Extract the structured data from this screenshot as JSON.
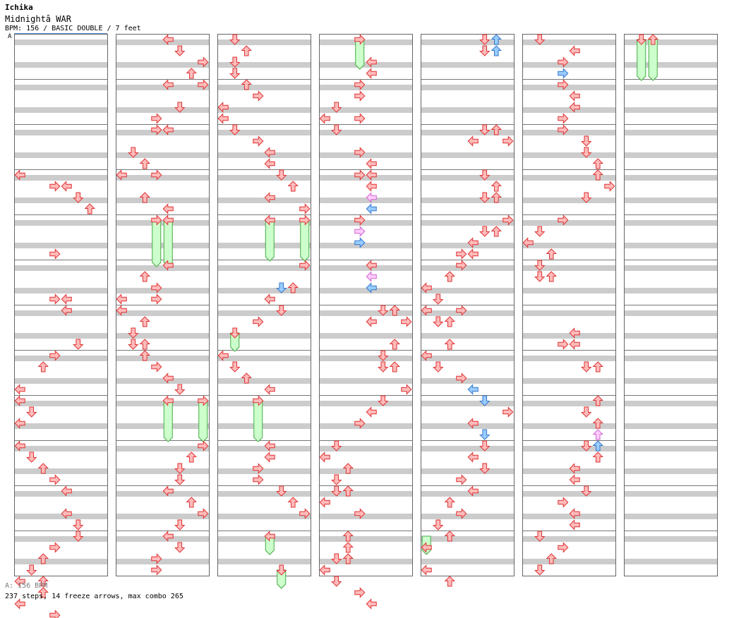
{
  "header": {
    "artist": "Ichika",
    "song": "Midnightâ  WAR",
    "meta": "BPM: 156 / BASIC DOUBLE / 7 feet",
    "marker": "A"
  },
  "footer": {
    "bpm_note": "A: 156 BPM",
    "summary": "237 steps, 14 freeze arrows, max combo 265"
  },
  "colors": {
    "stripe": "#cccccc",
    "border": "#666666",
    "arrow_red": "#ffbbbb",
    "arrow_red_stroke": "#dd3333",
    "arrow_blue": "#99ccff",
    "arrow_blue_stroke": "#3377cc",
    "arrow_pink": "#ffccff",
    "arrow_pink_stroke": "#cc66cc",
    "freeze_fill": "#ccffcc",
    "freeze_stroke": "#44aa44"
  },
  "columns": [
    {
      "notes": [
        [
          0,
          12,
          "r"
        ],
        [
          3,
          13,
          "r"
        ],
        [
          4,
          13,
          "r"
        ],
        [
          5,
          14,
          "r"
        ],
        [
          6,
          15,
          "r"
        ],
        [
          3,
          19,
          "r"
        ],
        [
          3,
          23,
          "r"
        ],
        [
          4,
          23,
          "r"
        ],
        [
          4,
          24,
          "r"
        ],
        [
          5,
          27,
          "r"
        ],
        [
          3,
          28,
          "r"
        ],
        [
          2,
          29,
          "r"
        ],
        [
          0,
          31,
          "r"
        ],
        [
          0,
          32,
          "r"
        ],
        [
          1,
          33,
          "r"
        ],
        [
          0,
          34,
          "r"
        ],
        [
          0,
          36,
          "r"
        ],
        [
          1,
          37,
          "r"
        ],
        [
          2,
          38,
          "r"
        ],
        [
          3,
          39,
          "r"
        ],
        [
          4,
          40,
          "r"
        ],
        [
          4,
          42,
          "r"
        ],
        [
          5,
          43,
          "r"
        ],
        [
          5,
          44,
          "r"
        ],
        [
          3,
          45,
          "r"
        ],
        [
          2,
          46,
          "r"
        ],
        [
          1,
          47,
          "r"
        ],
        [
          0,
          48,
          "r"
        ],
        [
          2,
          48,
          "r"
        ],
        [
          2,
          49,
          "r"
        ],
        [
          0,
          50,
          "r"
        ],
        [
          3,
          51,
          "r"
        ],
        [
          1,
          52,
          "r"
        ]
      ],
      "freezes": []
    },
    {
      "notes": [
        [
          4,
          0,
          "r"
        ],
        [
          5,
          1,
          "r"
        ],
        [
          7,
          2,
          "r"
        ],
        [
          6,
          3,
          "r"
        ],
        [
          4,
          4,
          "r"
        ],
        [
          7,
          4,
          "r"
        ],
        [
          5,
          6,
          "r"
        ],
        [
          3,
          7,
          "r"
        ],
        [
          3,
          8,
          "r"
        ],
        [
          4,
          8,
          "r"
        ],
        [
          1,
          10,
          "r"
        ],
        [
          2,
          11,
          "r"
        ],
        [
          0,
          12,
          "r"
        ],
        [
          3,
          12,
          "r"
        ],
        [
          2,
          14,
          "r"
        ],
        [
          4,
          15,
          "r"
        ],
        [
          3,
          16,
          "r"
        ],
        [
          4,
          16,
          "r"
        ],
        [
          4,
          20,
          "r"
        ],
        [
          2,
          21,
          "r"
        ],
        [
          3,
          22,
          "r"
        ],
        [
          0,
          23,
          "r"
        ],
        [
          3,
          23,
          "r"
        ],
        [
          0,
          24,
          "r"
        ],
        [
          2,
          25,
          "r"
        ],
        [
          1,
          26,
          "r"
        ],
        [
          1,
          27,
          "r"
        ],
        [
          2,
          27,
          "r"
        ],
        [
          2,
          28,
          "r"
        ],
        [
          3,
          29,
          "r"
        ],
        [
          4,
          30,
          "r"
        ],
        [
          5,
          31,
          "r"
        ],
        [
          4,
          32,
          "r"
        ],
        [
          7,
          32,
          "r"
        ],
        [
          7,
          36,
          "r"
        ],
        [
          6,
          37,
          "r"
        ],
        [
          5,
          38,
          "r"
        ],
        [
          5,
          39,
          "r"
        ],
        [
          4,
          40,
          "r"
        ],
        [
          6,
          41,
          "r"
        ],
        [
          7,
          42,
          "r"
        ],
        [
          5,
          43,
          "r"
        ],
        [
          4,
          44,
          "r"
        ],
        [
          5,
          45,
          "r"
        ],
        [
          3,
          46,
          "r"
        ],
        [
          3,
          47,
          "r"
        ]
      ],
      "freezes": [
        [
          3,
          16,
          20
        ],
        [
          4,
          16,
          20
        ],
        [
          4,
          32,
          35.5
        ],
        [
          7,
          32,
          35.5
        ]
      ]
    },
    {
      "notes": [
        [
          1,
          0,
          "r"
        ],
        [
          2,
          1,
          "r"
        ],
        [
          1,
          2,
          "r"
        ],
        [
          1,
          3,
          "r"
        ],
        [
          2,
          4,
          "r"
        ],
        [
          3,
          5,
          "r"
        ],
        [
          0,
          6,
          "r"
        ],
        [
          0,
          7,
          "r"
        ],
        [
          1,
          8,
          "r"
        ],
        [
          3,
          9,
          "r"
        ],
        [
          4,
          10,
          "r"
        ],
        [
          4,
          11,
          "r"
        ],
        [
          5,
          12,
          "r"
        ],
        [
          6,
          13,
          "r"
        ],
        [
          4,
          14,
          "r"
        ],
        [
          7,
          15,
          "r"
        ],
        [
          4,
          16,
          "r"
        ],
        [
          7,
          16,
          "r"
        ],
        [
          7,
          20,
          "r"
        ],
        [
          5,
          22,
          "b"
        ],
        [
          6,
          22,
          "r"
        ],
        [
          4,
          23,
          "r"
        ],
        [
          5,
          24,
          "r"
        ],
        [
          3,
          25,
          "r"
        ],
        [
          1,
          26,
          "r"
        ],
        [
          0,
          28,
          "r"
        ],
        [
          1,
          29,
          "r"
        ],
        [
          2,
          30,
          "r"
        ],
        [
          4,
          31,
          "r"
        ],
        [
          3,
          32,
          "r"
        ],
        [
          4,
          36,
          "r"
        ],
        [
          4,
          37,
          "r"
        ],
        [
          3,
          38,
          "r"
        ],
        [
          3,
          39,
          "r"
        ],
        [
          5,
          40,
          "r"
        ],
        [
          6,
          41,
          "r"
        ],
        [
          7,
          42,
          "r"
        ],
        [
          4,
          44,
          "r"
        ],
        [
          5,
          47,
          "r"
        ]
      ],
      "freezes": [
        [
          4,
          16,
          19.5
        ],
        [
          7,
          16,
          19.5
        ],
        [
          1,
          26,
          27.5
        ],
        [
          3,
          32,
          35.5
        ],
        [
          4,
          44,
          45.5
        ],
        [
          5,
          47,
          48.5
        ]
      ]
    },
    {
      "notes": [
        [
          3,
          0,
          "r"
        ],
        [
          4,
          2,
          "r"
        ],
        [
          4,
          3,
          "r"
        ],
        [
          3,
          4,
          "r"
        ],
        [
          3,
          5,
          "r"
        ],
        [
          1,
          6,
          "r"
        ],
        [
          0,
          7,
          "r"
        ],
        [
          3,
          7,
          "r"
        ],
        [
          1,
          8,
          "r"
        ],
        [
          3,
          10,
          "r"
        ],
        [
          4,
          11,
          "r"
        ],
        [
          3,
          12,
          "r"
        ],
        [
          4,
          12,
          "r"
        ],
        [
          4,
          13,
          "r"
        ],
        [
          4,
          14,
          "p"
        ],
        [
          4,
          15,
          "b"
        ],
        [
          3,
          16,
          "r"
        ],
        [
          3,
          17,
          "p"
        ],
        [
          3,
          18,
          "b"
        ],
        [
          4,
          20,
          "r"
        ],
        [
          4,
          21,
          "p"
        ],
        [
          4,
          22,
          "b"
        ],
        [
          5,
          24,
          "r"
        ],
        [
          6,
          24,
          "r"
        ],
        [
          4,
          25,
          "r"
        ],
        [
          7,
          25,
          "r"
        ],
        [
          6,
          27,
          "r"
        ],
        [
          5,
          28,
          "r"
        ],
        [
          5,
          29,
          "r"
        ],
        [
          6,
          29,
          "r"
        ],
        [
          7,
          31,
          "r"
        ],
        [
          5,
          32,
          "r"
        ],
        [
          4,
          33,
          "r"
        ],
        [
          3,
          34,
          "r"
        ],
        [
          1,
          36,
          "r"
        ],
        [
          0,
          37,
          "r"
        ],
        [
          2,
          38,
          "r"
        ],
        [
          1,
          39,
          "r"
        ],
        [
          1,
          40,
          "r"
        ],
        [
          2,
          40,
          "r"
        ],
        [
          0,
          41,
          "r"
        ],
        [
          3,
          42,
          "r"
        ],
        [
          2,
          44,
          "r"
        ],
        [
          2,
          45,
          "r"
        ],
        [
          1,
          46,
          "r"
        ],
        [
          2,
          46,
          "r"
        ],
        [
          0,
          47,
          "r"
        ],
        [
          1,
          48,
          "r"
        ],
        [
          3,
          49,
          "r"
        ],
        [
          4,
          50,
          "r"
        ]
      ],
      "freezes": [
        [
          3,
          0,
          2.5
        ]
      ]
    },
    {
      "notes": [
        [
          5,
          0,
          "r"
        ],
        [
          6,
          0,
          "b"
        ],
        [
          5,
          1,
          "r"
        ],
        [
          6,
          1,
          "b"
        ],
        [
          5,
          8,
          "r"
        ],
        [
          6,
          8,
          "r"
        ],
        [
          4,
          9,
          "r"
        ],
        [
          7,
          9,
          "r"
        ],
        [
          5,
          12,
          "r"
        ],
        [
          6,
          13,
          "r"
        ],
        [
          5,
          14,
          "r"
        ],
        [
          6,
          14,
          "r"
        ],
        [
          7,
          16,
          "r"
        ],
        [
          5,
          17,
          "r"
        ],
        [
          6,
          17,
          "r"
        ],
        [
          4,
          18,
          "r"
        ],
        [
          3,
          19,
          "r"
        ],
        [
          4,
          19,
          "r"
        ],
        [
          3,
          20,
          "r"
        ],
        [
          2,
          21,
          "r"
        ],
        [
          0,
          22,
          "r"
        ],
        [
          1,
          23,
          "r"
        ],
        [
          0,
          24,
          "r"
        ],
        [
          3,
          24,
          "r"
        ],
        [
          1,
          25,
          "r"
        ],
        [
          2,
          25,
          "r"
        ],
        [
          2,
          27,
          "r"
        ],
        [
          0,
          28,
          "r"
        ],
        [
          1,
          29,
          "r"
        ],
        [
          3,
          30,
          "r"
        ],
        [
          4,
          31,
          "b"
        ],
        [
          5,
          32,
          "b"
        ],
        [
          7,
          33,
          "r"
        ],
        [
          4,
          34,
          "r"
        ],
        [
          5,
          35,
          "b"
        ],
        [
          5,
          36,
          "r"
        ],
        [
          4,
          37,
          "r"
        ],
        [
          5,
          38,
          "r"
        ],
        [
          3,
          39,
          "r"
        ],
        [
          4,
          40,
          "r"
        ],
        [
          2,
          41,
          "r"
        ],
        [
          3,
          42,
          "r"
        ],
        [
          1,
          43,
          "r"
        ],
        [
          2,
          44,
          "r"
        ],
        [
          0,
          45,
          "r"
        ],
        [
          0,
          47,
          "r"
        ],
        [
          2,
          48,
          "r"
        ]
      ],
      "freezes": [
        [
          0,
          44,
          45.5
        ]
      ]
    },
    {
      "notes": [
        [
          1,
          0,
          "r"
        ],
        [
          4,
          1,
          "r"
        ],
        [
          3,
          2,
          "r"
        ],
        [
          3,
          3,
          "b"
        ],
        [
          3,
          4,
          "r"
        ],
        [
          4,
          5,
          "r"
        ],
        [
          4,
          6,
          "r"
        ],
        [
          3,
          7,
          "r"
        ],
        [
          3,
          8,
          "r"
        ],
        [
          5,
          9,
          "r"
        ],
        [
          5,
          10,
          "r"
        ],
        [
          6,
          11,
          "r"
        ],
        [
          6,
          12,
          "r"
        ],
        [
          7,
          13,
          "r"
        ],
        [
          5,
          14,
          "r"
        ],
        [
          3,
          16,
          "r"
        ],
        [
          1,
          17,
          "r"
        ],
        [
          0,
          18,
          "r"
        ],
        [
          2,
          19,
          "r"
        ],
        [
          1,
          20,
          "r"
        ],
        [
          1,
          21,
          "r"
        ],
        [
          2,
          21,
          "r"
        ],
        [
          4,
          26,
          "r"
        ],
        [
          3,
          27,
          "r"
        ],
        [
          4,
          27,
          "r"
        ],
        [
          5,
          29,
          "r"
        ],
        [
          6,
          29,
          "r"
        ],
        [
          6,
          32,
          "r"
        ],
        [
          5,
          33,
          "r"
        ],
        [
          6,
          34,
          "r"
        ],
        [
          6,
          35,
          "p"
        ],
        [
          6,
          36,
          "b"
        ],
        [
          5,
          36,
          "r"
        ],
        [
          6,
          37,
          "r"
        ],
        [
          4,
          38,
          "r"
        ],
        [
          4,
          39,
          "r"
        ],
        [
          5,
          40,
          "r"
        ],
        [
          3,
          41,
          "r"
        ],
        [
          4,
          42,
          "r"
        ],
        [
          4,
          43,
          "r"
        ],
        [
          1,
          44,
          "r"
        ],
        [
          3,
          45,
          "r"
        ],
        [
          2,
          46,
          "r"
        ],
        [
          1,
          47,
          "r"
        ]
      ],
      "freezes": []
    },
    {
      "notes": [
        [
          1,
          0,
          "r"
        ],
        [
          2,
          0,
          "r"
        ]
      ],
      "freezes": [
        [
          1,
          0,
          3.5
        ],
        [
          2,
          0,
          3.5
        ]
      ]
    }
  ]
}
